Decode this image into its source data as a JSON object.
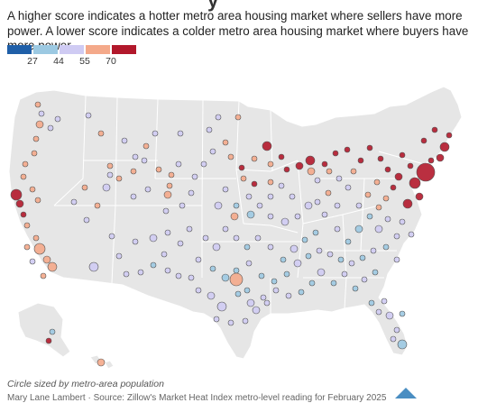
{
  "header": {
    "title_fragment": "y",
    "subtitle": "A higher score indicates a hotter metro area housing market where sellers have more power. A lower score indicates a colder metro area housing market where buyers have more power."
  },
  "legend": {
    "ticks": [
      "27",
      "44",
      "55",
      "70"
    ],
    "colors": [
      "#1f5fa8",
      "#9cc9e2",
      "#cfcbf3",
      "#f4a98a",
      "#b2182b"
    ]
  },
  "map": {
    "land_color": "#e6e6e6",
    "border_color": "#ffffff",
    "size_encoding": "metro-area population",
    "score_ranges": {
      "cold": "<27",
      "cool": "27-44",
      "neutral": "44-55",
      "warm": "55-70",
      "hot": ">70"
    }
  },
  "footer": {
    "caption": "Circle sized by metro-area population",
    "source": "Mary Lane Lambert · Source: Zillow's Market Heat Index metro-level reading for February 2025"
  }
}
